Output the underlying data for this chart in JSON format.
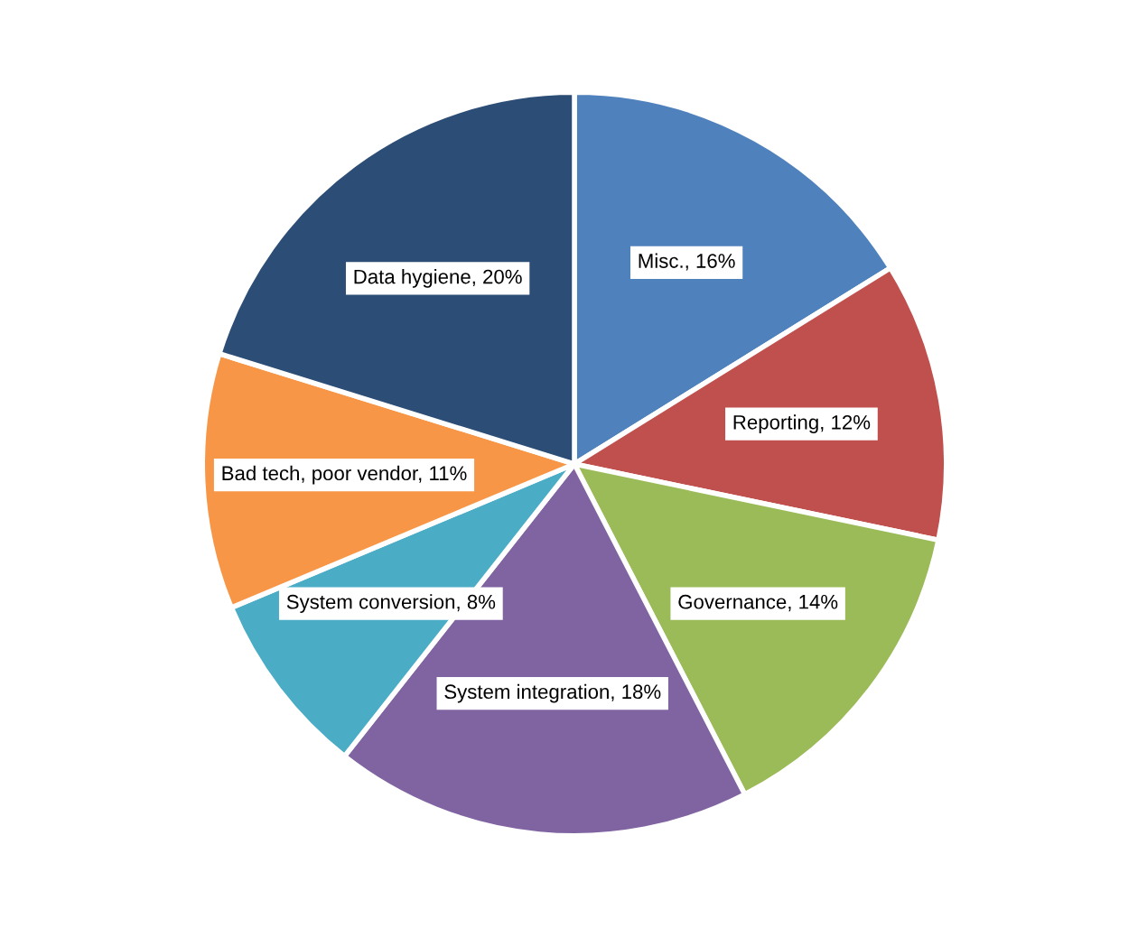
{
  "chart_data": {
    "type": "pie",
    "categories": [
      "Misc.",
      "Reporting",
      "Governance",
      "System integration",
      "System conversion",
      "Bad tech, poor vendor",
      "Data hygiene"
    ],
    "values": [
      16,
      12,
      14,
      18,
      8,
      11,
      20
    ],
    "colors": [
      "#4f81bd",
      "#c0504d",
      "#9bbb59",
      "#8064a2",
      "#4bacc6",
      "#f79646",
      "#2c4d75"
    ],
    "value_labels": [
      "16%",
      "12%",
      "14%",
      "18%",
      "8%",
      "11%",
      "20%"
    ],
    "legend": false
  }
}
